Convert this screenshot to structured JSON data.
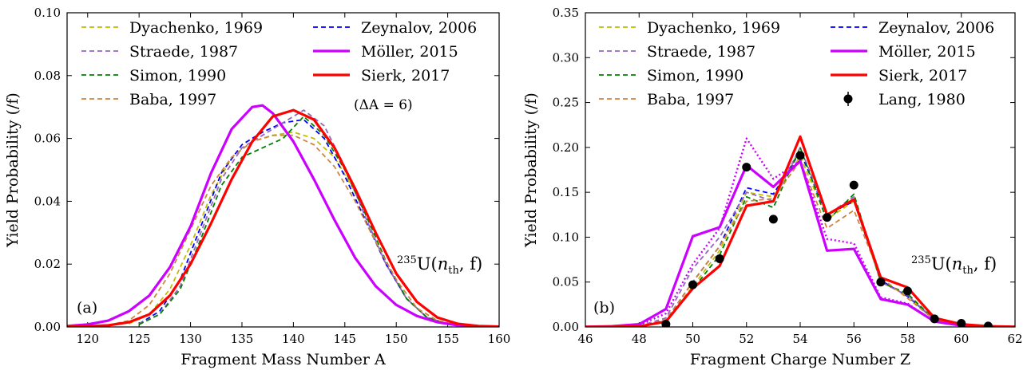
{
  "chart_data": [
    {
      "type": "line",
      "panel_label": "(a)",
      "annotation": "(ΔA = 6)",
      "reaction": {
        "pre": "235",
        "base": "U(",
        "n": "n",
        "sub": "th",
        "post": ", f)"
      },
      "xlabel": "Fragment Mass Number A",
      "ylabel": "Yield Probability (/f)",
      "xlim": [
        118,
        160
      ],
      "ylim": [
        0,
        0.1
      ],
      "xticks": [
        120,
        125,
        130,
        135,
        140,
        145,
        150,
        155,
        160
      ],
      "yticks": [
        0.0,
        0.02,
        0.04,
        0.06,
        0.08,
        0.1
      ],
      "ytick_labels": [
        "0.00",
        "0.02",
        "0.04",
        "0.06",
        "0.08",
        "0.10"
      ],
      "legend": [
        {
          "name": "Dyachenko, 1969",
          "color": "#bfbf00",
          "style": "dashed"
        },
        {
          "name": "Zeynalov, 2006",
          "color": "#0000ff",
          "style": "dashed"
        },
        {
          "name": "Straede, 1987",
          "color": "#9467bd",
          "style": "dashed"
        },
        {
          "name": "Möller, 2015",
          "color": "#cc00ff",
          "style": "solid-thick"
        },
        {
          "name": "Simon, 1990",
          "color": "#008000",
          "style": "dashed"
        },
        {
          "name": "Sierk, 2017",
          "color": "#ff0000",
          "style": "solid-thick"
        },
        {
          "name": "Baba, 1997",
          "color": "#cd853f",
          "style": "dashed"
        }
      ],
      "series": [
        {
          "name": "Dyachenko, 1969",
          "color": "#bfbf00",
          "dash": "6,4",
          "width": 1.8,
          "x": [
            124,
            126,
            128,
            130,
            132,
            134,
            136,
            138,
            140,
            142,
            144,
            146,
            148,
            150,
            152,
            154,
            156,
            158
          ],
          "y": [
            0.001,
            0.004,
            0.012,
            0.026,
            0.042,
            0.054,
            0.059,
            0.061,
            0.062,
            0.06,
            0.054,
            0.043,
            0.03,
            0.017,
            0.008,
            0.003,
            0.001,
            0.0003
          ]
        },
        {
          "name": "Zeynalov, 2006",
          "color": "#0000ff",
          "dash": "6,4",
          "width": 1.8,
          "x": [
            125,
            127,
            129,
            131,
            133,
            135,
            137,
            139,
            141,
            143,
            145,
            147,
            149,
            151,
            153,
            155,
            157
          ],
          "y": [
            0.001,
            0.005,
            0.015,
            0.032,
            0.049,
            0.058,
            0.062,
            0.065,
            0.066,
            0.06,
            0.048,
            0.034,
            0.02,
            0.009,
            0.003,
            0.001,
            0.0003
          ]
        },
        {
          "name": "Straede, 1987",
          "color": "#9467bd",
          "dash": "6,4",
          "width": 1.8,
          "x": [
            125,
            127,
            129,
            131,
            133,
            135,
            137,
            139,
            141,
            143,
            145,
            147,
            149,
            151,
            153,
            155,
            157
          ],
          "y": [
            0.001,
            0.004,
            0.013,
            0.03,
            0.047,
            0.057,
            0.061,
            0.065,
            0.069,
            0.064,
            0.051,
            0.035,
            0.02,
            0.009,
            0.003,
            0.001,
            0.0003
          ]
        },
        {
          "name": "Simon, 1990",
          "color": "#008000",
          "dash": "6,4",
          "width": 1.8,
          "x": [
            125,
            127,
            129,
            131,
            133,
            135,
            137,
            139,
            141,
            143,
            145,
            147,
            149,
            151,
            153,
            155,
            157
          ],
          "y": [
            0.0008,
            0.004,
            0.012,
            0.028,
            0.045,
            0.054,
            0.057,
            0.06,
            0.067,
            0.061,
            0.05,
            0.036,
            0.021,
            0.009,
            0.003,
            0.001,
            0.0003
          ]
        },
        {
          "name": "Baba, 1997",
          "color": "#cd853f",
          "dash": "6,4",
          "width": 1.8,
          "x": [
            122,
            124,
            126,
            128,
            130,
            132,
            134,
            136,
            138,
            140,
            142,
            144,
            146,
            148,
            150,
            152,
            154,
            156
          ],
          "y": [
            0.0005,
            0.002,
            0.007,
            0.017,
            0.031,
            0.045,
            0.054,
            0.059,
            0.061,
            0.061,
            0.058,
            0.051,
            0.04,
            0.027,
            0.015,
            0.006,
            0.002,
            0.0005
          ]
        },
        {
          "name": "Möller, 2015",
          "color": "#cc00ff",
          "dash": "",
          "width": 3.2,
          "x": [
            118,
            120,
            122,
            124,
            126,
            128,
            130,
            132,
            134,
            136,
            137,
            138,
            140,
            142,
            144,
            146,
            148,
            150,
            152,
            154,
            156,
            158,
            160
          ],
          "y": [
            0.0003,
            0.0008,
            0.002,
            0.005,
            0.01,
            0.019,
            0.032,
            0.049,
            0.063,
            0.07,
            0.0705,
            0.068,
            0.059,
            0.047,
            0.034,
            0.022,
            0.013,
            0.007,
            0.0035,
            0.0015,
            0.0005,
            0.0002,
            0.0001
          ]
        },
        {
          "name": "Sierk, 2017",
          "color": "#ff0000",
          "dash": "",
          "width": 3.2,
          "x": [
            118,
            120,
            122,
            124,
            126,
            128,
            130,
            132,
            134,
            136,
            138,
            140,
            142,
            144,
            146,
            148,
            150,
            152,
            154,
            156,
            158,
            160
          ],
          "y": [
            0.0001,
            0.0002,
            0.0005,
            0.0015,
            0.004,
            0.01,
            0.02,
            0.033,
            0.047,
            0.059,
            0.067,
            0.069,
            0.066,
            0.057,
            0.044,
            0.03,
            0.017,
            0.008,
            0.003,
            0.001,
            0.0003,
            0.0001
          ]
        }
      ]
    },
    {
      "type": "line",
      "panel_label": "(b)",
      "reaction": {
        "pre": "235",
        "base": "U(",
        "n": "n",
        "sub": "th",
        "post": ", f)"
      },
      "xlabel": "Fragment Charge Number Z",
      "ylabel": "Yield Probability (/f)",
      "xlim": [
        46,
        62
      ],
      "ylim": [
        0,
        0.35
      ],
      "xticks": [
        46,
        48,
        50,
        52,
        54,
        56,
        58,
        60,
        62
      ],
      "yticks": [
        0.0,
        0.05,
        0.1,
        0.15,
        0.2,
        0.25,
        0.3,
        0.35
      ],
      "ytick_labels": [
        "0.00",
        "0.05",
        "0.10",
        "0.15",
        "0.20",
        "0.25",
        "0.30",
        "0.35"
      ],
      "legend": [
        {
          "name": "Dyachenko, 1969",
          "color": "#bfbf00",
          "style": "dashed"
        },
        {
          "name": "Zeynalov, 2006",
          "color": "#0000ff",
          "style": "dashed"
        },
        {
          "name": "Straede, 1987",
          "color": "#9467bd",
          "style": "dashed"
        },
        {
          "name": "Möller, 2015",
          "color": "#cc00ff",
          "style": "solid-thick"
        },
        {
          "name": "Simon, 1990",
          "color": "#008000",
          "style": "dashed"
        },
        {
          "name": "Sierk, 2017",
          "color": "#ff0000",
          "style": "solid-thick"
        },
        {
          "name": "Baba, 1997",
          "color": "#cd853f",
          "style": "dashed"
        },
        {
          "name": "Lang, 1980",
          "color": "#000000",
          "style": "marker"
        }
      ],
      "series": [
        {
          "name": "Dyachenko, 1969",
          "color": "#bfbf00",
          "dash": "6,4",
          "width": 1.8,
          "x": [
            48,
            49,
            50,
            51,
            52,
            53,
            54,
            55,
            56,
            57,
            58,
            59,
            60,
            61,
            62
          ],
          "y": [
            0.001,
            0.008,
            0.045,
            0.085,
            0.15,
            0.145,
            0.19,
            0.12,
            0.14,
            0.05,
            0.035,
            0.008,
            0.002,
            0.0005,
            0.0001
          ]
        },
        {
          "name": "Zeynalov, 2006",
          "color": "#0000ff",
          "dash": "6,4",
          "width": 1.8,
          "x": [
            48,
            49,
            50,
            51,
            52,
            53,
            54,
            55,
            56,
            57,
            58,
            59,
            60,
            61,
            62
          ],
          "y": [
            0.001,
            0.008,
            0.05,
            0.09,
            0.155,
            0.148,
            0.195,
            0.125,
            0.14,
            0.052,
            0.034,
            0.008,
            0.002,
            0.0005,
            0.0001
          ]
        },
        {
          "name": "Straede, 1987",
          "color": "#9467bd",
          "dash": "6,4",
          "width": 1.8,
          "x": [
            48,
            49,
            50,
            51,
            52,
            53,
            54,
            55,
            56,
            57,
            58,
            59,
            60,
            61,
            62
          ],
          "y": [
            0.001,
            0.01,
            0.065,
            0.1,
            0.15,
            0.14,
            0.2,
            0.125,
            0.145,
            0.05,
            0.035,
            0.008,
            0.002,
            0.0005,
            0.0001
          ]
        },
        {
          "name": "Simon, 1990",
          "color": "#008000",
          "dash": "6,4",
          "width": 1.8,
          "x": [
            48,
            49,
            50,
            51,
            52,
            53,
            54,
            55,
            56,
            57,
            58,
            59,
            60,
            61,
            62
          ],
          "y": [
            0.001,
            0.007,
            0.042,
            0.08,
            0.145,
            0.133,
            0.2,
            0.118,
            0.148,
            0.05,
            0.037,
            0.008,
            0.002,
            0.0005,
            0.0001
          ]
        },
        {
          "name": "Baba, 1997",
          "color": "#cd853f",
          "dash": "6,4",
          "width": 1.8,
          "x": [
            48,
            49,
            50,
            51,
            52,
            53,
            54,
            55,
            56,
            57,
            58,
            59,
            60,
            61,
            62
          ],
          "y": [
            0.001,
            0.008,
            0.05,
            0.09,
            0.14,
            0.143,
            0.185,
            0.11,
            0.13,
            0.055,
            0.032,
            0.008,
            0.002,
            0.0005,
            0.0001
          ]
        },
        {
          "name": "Möller, 2015 (dotted)",
          "color": "#cc00ff",
          "dash": "2,3",
          "width": 2.4,
          "x": [
            48,
            49,
            50,
            51,
            52,
            53,
            54,
            55,
            56,
            57,
            58,
            59,
            60,
            61,
            62
          ],
          "y": [
            0.002,
            0.015,
            0.07,
            0.11,
            0.21,
            0.165,
            0.185,
            0.098,
            0.093,
            0.033,
            0.026,
            0.006,
            0.0015,
            0.0004,
            0.0001
          ]
        },
        {
          "name": "Möller, 2015",
          "color": "#cc00ff",
          "dash": "",
          "width": 3.2,
          "x": [
            46,
            47,
            48,
            49,
            50,
            51,
            52,
            53,
            54,
            55,
            56,
            57,
            58,
            59,
            60,
            61,
            62
          ],
          "y": [
            0.0001,
            0.0008,
            0.003,
            0.02,
            0.101,
            0.111,
            0.18,
            0.156,
            0.185,
            0.085,
            0.087,
            0.031,
            0.025,
            0.006,
            0.0015,
            0.0004,
            0.0001
          ]
        },
        {
          "name": "Sierk, 2017",
          "color": "#ff0000",
          "dash": "",
          "width": 3.2,
          "x": [
            46,
            47,
            48,
            49,
            50,
            51,
            52,
            53,
            54,
            55,
            56,
            57,
            58,
            59,
            60,
            61,
            62
          ],
          "y": [
            0.0001,
            0.0002,
            0.0005,
            0.006,
            0.043,
            0.068,
            0.135,
            0.14,
            0.212,
            0.125,
            0.142,
            0.055,
            0.044,
            0.01,
            0.003,
            0.0008,
            0.0002
          ]
        }
      ],
      "points": {
        "name": "Lang, 1980",
        "x": [
          49,
          50,
          51,
          52,
          53,
          54,
          55,
          56,
          57,
          58,
          59,
          60,
          61
        ],
        "y": [
          0.003,
          0.047,
          0.076,
          0.178,
          0.12,
          0.191,
          0.122,
          0.158,
          0.05,
          0.04,
          0.009,
          0.004,
          0.001
        ]
      }
    }
  ]
}
